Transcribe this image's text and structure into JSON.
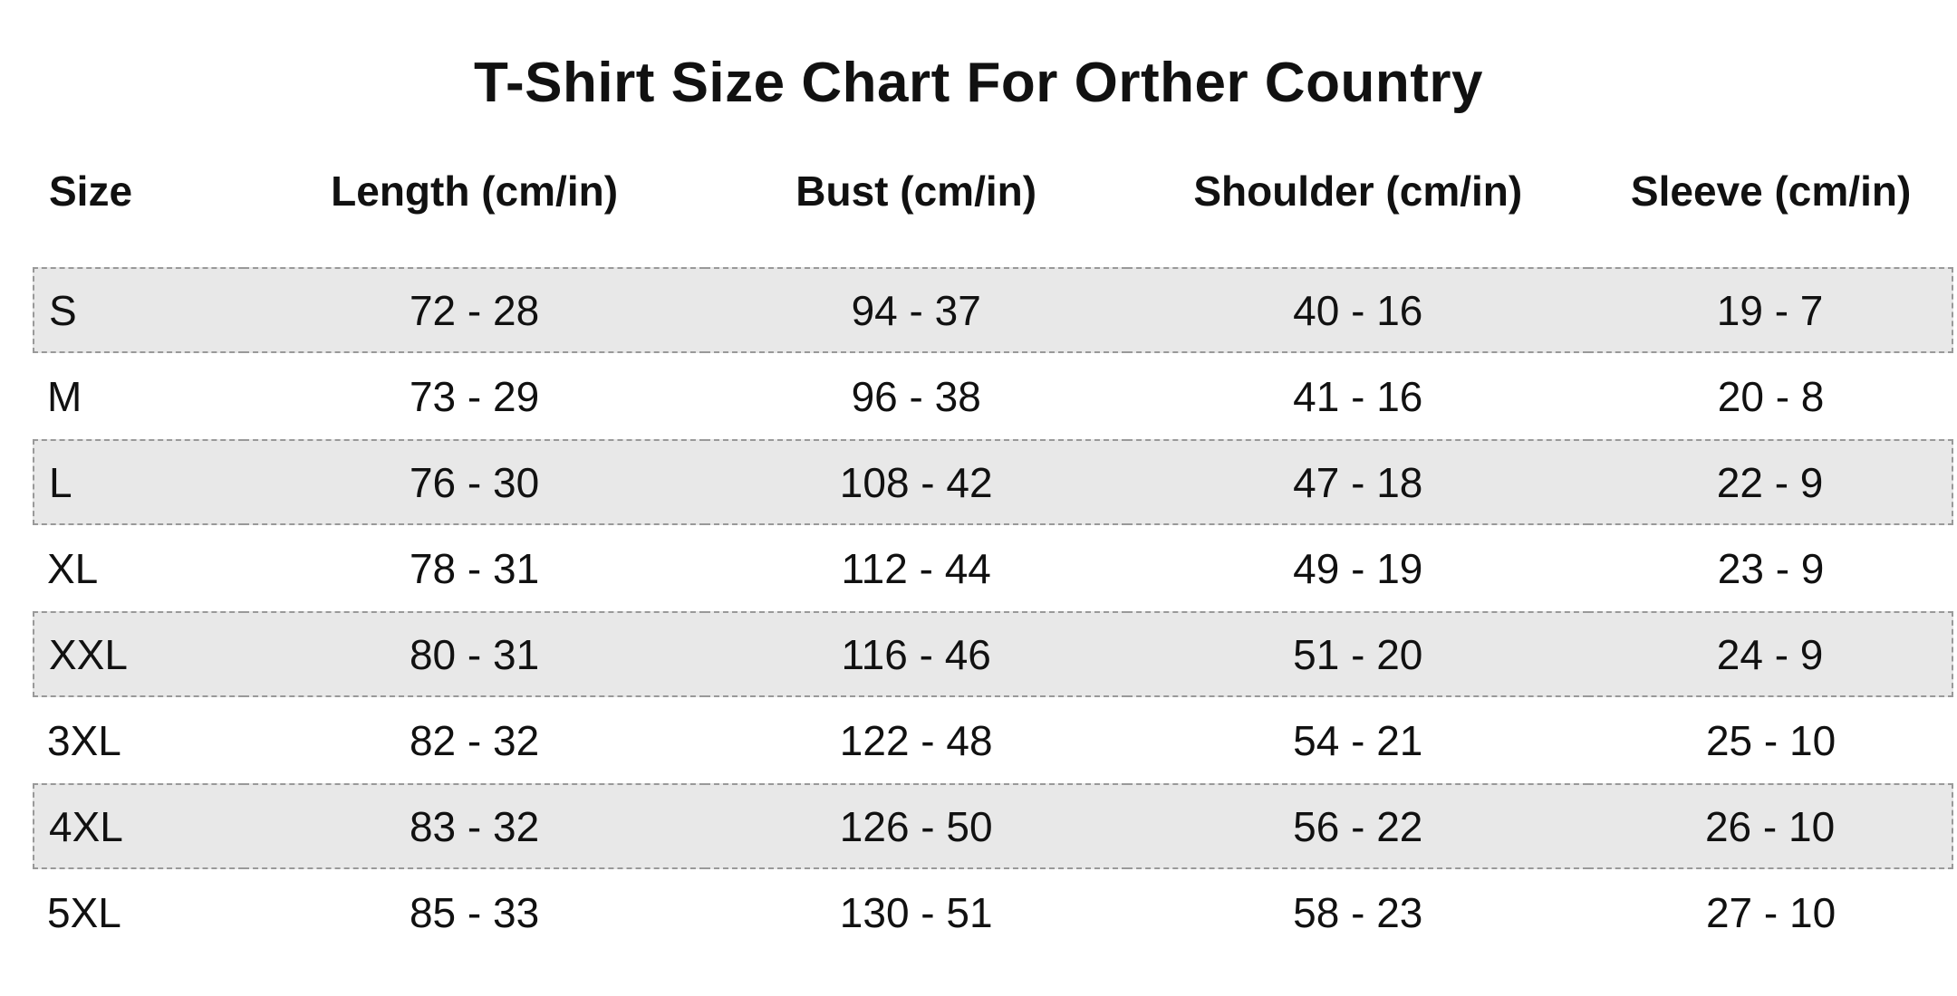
{
  "title": "T-Shirt Size Chart For Orther Country",
  "colors": {
    "background": "#ffffff",
    "text": "#111111",
    "shaded_row_fill": "#e8e8e8",
    "shaded_row_border": "#999999"
  },
  "chart_data": {
    "type": "table",
    "title": "T-Shirt Size Chart For Orther Country",
    "columns": [
      "Size",
      "Length (cm/in)",
      "Bust (cm/in)",
      "Shoulder (cm/in)",
      "Sleeve (cm/in)"
    ],
    "rows": [
      [
        "S",
        "72 - 28",
        "94 - 37",
        "40 - 16",
        "19 - 7"
      ],
      [
        "M",
        "73 - 29",
        "96 - 38",
        "41 - 16",
        "20 - 8"
      ],
      [
        "L",
        "76 - 30",
        "108 - 42",
        "47 - 18",
        "22 - 9"
      ],
      [
        "XL",
        "78 - 31",
        "112 - 44",
        "49 - 19",
        "23 - 9"
      ],
      [
        "XXL",
        "80 - 31",
        "116 - 46",
        "51 - 20",
        "24 - 9"
      ],
      [
        "3XL",
        "82 - 32",
        "122 - 48",
        "54 - 21",
        "25 - 10"
      ],
      [
        "4XL",
        "83 - 32",
        "126 - 50",
        "56 - 22",
        "26 - 10"
      ],
      [
        "5XL",
        "85 - 33",
        "130 - 51",
        "58 - 23",
        "27 - 10"
      ]
    ],
    "shaded_row_indices": [
      0,
      2,
      4,
      6
    ],
    "layout": "alternating shaded rows with dashed borders, first column left-aligned, data columns centered"
  }
}
